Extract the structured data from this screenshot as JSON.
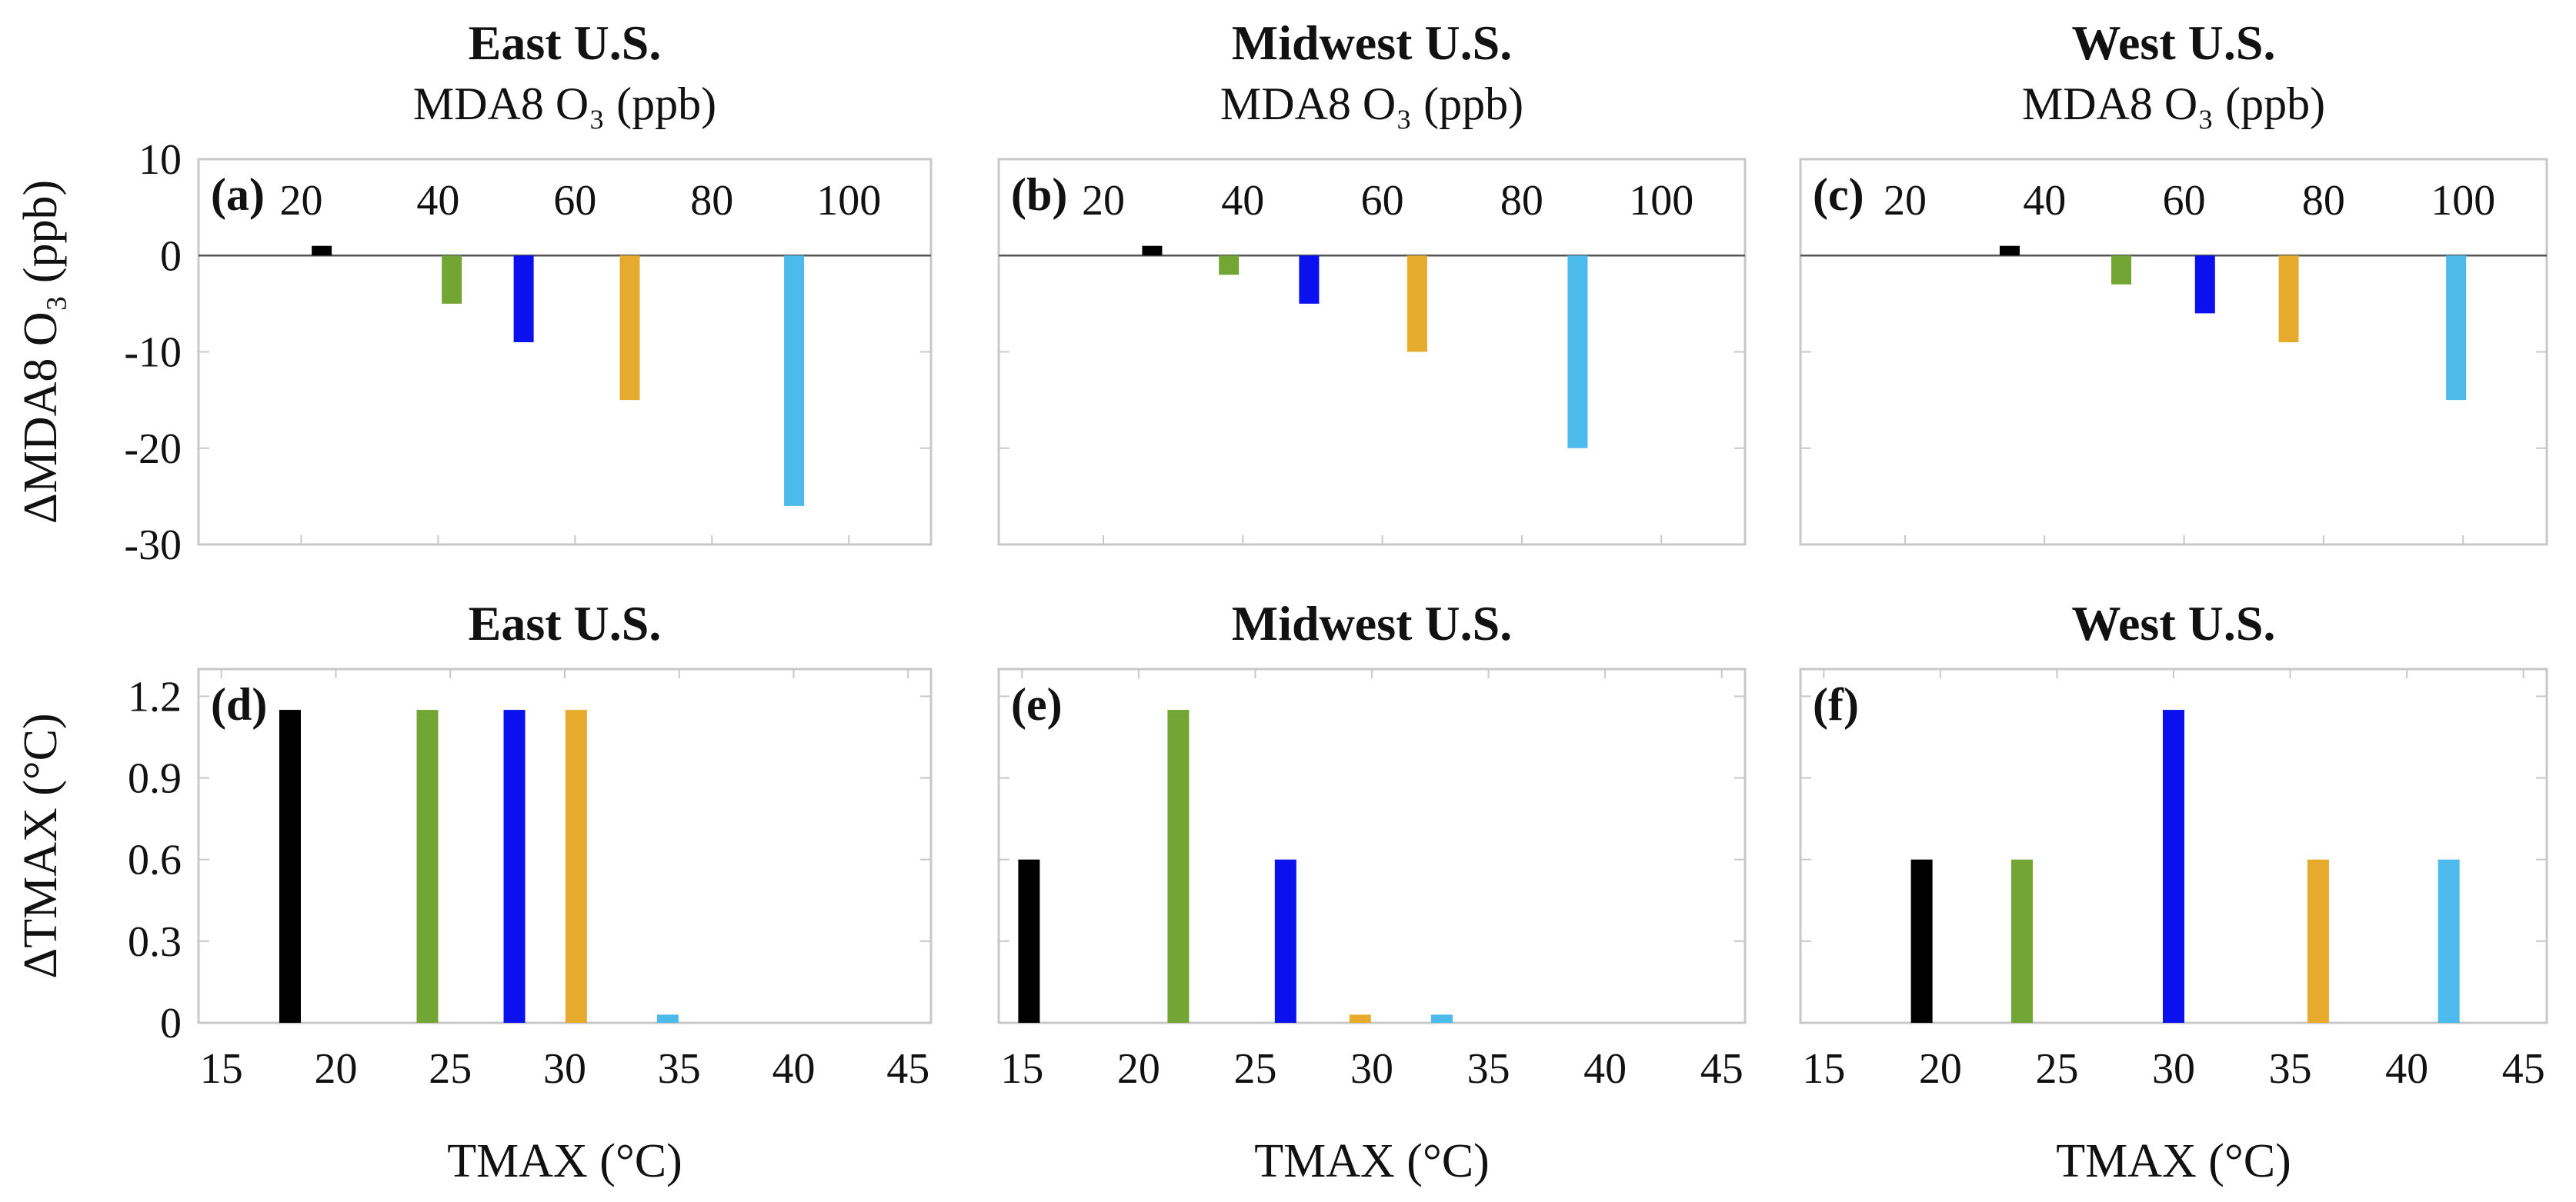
{
  "colors": {
    "black": "#000000",
    "green": "#72a533",
    "blue": "#0a10ee",
    "orange": "#e6ab2c",
    "skyblue": "#4cbaea"
  },
  "chart_data": [
    {
      "type": "bar",
      "id": "a",
      "panel_label": "(a)",
      "title": "East U.S.",
      "subtitle": "MDA8 O₃ (ppb)",
      "xlabel": "",
      "ylabel": "ΔMDA8 O₃ (ppb)",
      "xlim": [
        5,
        112
      ],
      "xticks": [
        20,
        40,
        60,
        80,
        100
      ],
      "xaxis_position": "top",
      "ylim": [
        -30,
        10
      ],
      "yticks": [
        10,
        0,
        -10,
        -20,
        -30
      ],
      "bars": [
        {
          "x": 23,
          "value": 1,
          "color": "black"
        },
        {
          "x": 42,
          "value": -5,
          "color": "green"
        },
        {
          "x": 52.5,
          "value": -9,
          "color": "blue"
        },
        {
          "x": 68,
          "value": -15,
          "color": "orange"
        },
        {
          "x": 92,
          "value": -26,
          "color": "skyblue"
        }
      ]
    },
    {
      "type": "bar",
      "id": "b",
      "panel_label": "(b)",
      "title": "Midwest U.S.",
      "subtitle": "MDA8 O₃ (ppb)",
      "xlabel": "",
      "ylabel": "",
      "xlim": [
        5,
        112
      ],
      "xticks": [
        20,
        40,
        60,
        80,
        100
      ],
      "xaxis_position": "top",
      "ylim": [
        -30,
        10
      ],
      "yticks": [
        10,
        0,
        -10,
        -20,
        -30
      ],
      "bars": [
        {
          "x": 27,
          "value": 1,
          "color": "black"
        },
        {
          "x": 38,
          "value": -2,
          "color": "green"
        },
        {
          "x": 49.5,
          "value": -5,
          "color": "blue"
        },
        {
          "x": 65,
          "value": -10,
          "color": "orange"
        },
        {
          "x": 88,
          "value": -20,
          "color": "skyblue"
        }
      ]
    },
    {
      "type": "bar",
      "id": "c",
      "panel_label": "(c)",
      "title": "West U.S.",
      "subtitle": "MDA8 O₃ (ppb)",
      "xlabel": "",
      "ylabel": "",
      "xlim": [
        5,
        112
      ],
      "xticks": [
        20,
        40,
        60,
        80,
        100
      ],
      "xaxis_position": "top",
      "ylim": [
        -30,
        10
      ],
      "yticks": [
        10,
        0,
        -10,
        -20,
        -30
      ],
      "bars": [
        {
          "x": 35,
          "value": 1,
          "color": "black"
        },
        {
          "x": 51,
          "value": -3,
          "color": "green"
        },
        {
          "x": 63,
          "value": -6,
          "color": "blue"
        },
        {
          "x": 75,
          "value": -9,
          "color": "orange"
        },
        {
          "x": 99,
          "value": -15,
          "color": "skyblue"
        }
      ]
    },
    {
      "type": "bar",
      "id": "d",
      "panel_label": "(d)",
      "title": "East U.S.",
      "subtitle": "",
      "xlabel": "TMAX (°C)",
      "ylabel": "ΔTMAX (°C)",
      "xlim": [
        14,
        46
      ],
      "xticks": [
        15,
        20,
        25,
        30,
        35,
        40,
        45
      ],
      "xaxis_position": "bottom",
      "ylim": [
        0,
        1.3
      ],
      "yticks": [
        1.2,
        0.9,
        0.6,
        0.3,
        0
      ],
      "bars": [
        {
          "x": 18,
          "value": 1.15,
          "color": "black"
        },
        {
          "x": 24,
          "value": 1.15,
          "color": "green"
        },
        {
          "x": 27.8,
          "value": 1.15,
          "color": "blue"
        },
        {
          "x": 30.5,
          "value": 1.15,
          "color": "orange"
        },
        {
          "x": 34.5,
          "value": 0.03,
          "color": "skyblue"
        }
      ]
    },
    {
      "type": "bar",
      "id": "e",
      "panel_label": "(e)",
      "title": "Midwest U.S.",
      "subtitle": "",
      "xlabel": "TMAX (°C)",
      "ylabel": "",
      "xlim": [
        14,
        46
      ],
      "xticks": [
        15,
        20,
        25,
        30,
        35,
        40,
        45
      ],
      "xaxis_position": "bottom",
      "ylim": [
        0,
        1.3
      ],
      "yticks": [
        1.2,
        0.9,
        0.6,
        0.3,
        0
      ],
      "bars": [
        {
          "x": 15.3,
          "value": 0.6,
          "color": "black"
        },
        {
          "x": 21.7,
          "value": 1.15,
          "color": "green"
        },
        {
          "x": 26.3,
          "value": 0.6,
          "color": "blue"
        },
        {
          "x": 29.5,
          "value": 0.03,
          "color": "orange"
        },
        {
          "x": 33,
          "value": 0.03,
          "color": "skyblue"
        }
      ]
    },
    {
      "type": "bar",
      "id": "f",
      "panel_label": "(f)",
      "title": "West U.S.",
      "subtitle": "",
      "xlabel": "TMAX (°C)",
      "ylabel": "",
      "xlim": [
        14,
        46
      ],
      "xticks": [
        15,
        20,
        25,
        30,
        35,
        40,
        45
      ],
      "xaxis_position": "bottom",
      "ylim": [
        0,
        1.3
      ],
      "yticks": [
        1.2,
        0.9,
        0.6,
        0.3,
        0
      ],
      "bars": [
        {
          "x": 19.2,
          "value": 0.6,
          "color": "black"
        },
        {
          "x": 23.5,
          "value": 0.6,
          "color": "green"
        },
        {
          "x": 30,
          "value": 1.15,
          "color": "blue"
        },
        {
          "x": 36.2,
          "value": 0.6,
          "color": "orange"
        },
        {
          "x": 41.8,
          "value": 0.6,
          "color": "skyblue"
        }
      ]
    }
  ]
}
